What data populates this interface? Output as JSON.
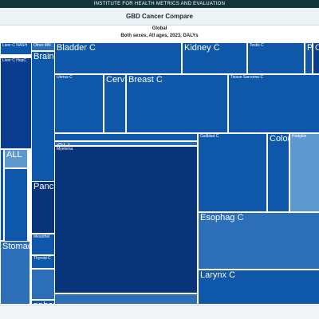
{
  "header": {
    "org": "INSTITUTE FOR HEALTH METRICS AND EVALUATION",
    "app_title": "GBD Cancer Compare",
    "location": "Global",
    "subtitle": "Both sexes, All ages, 2023, DALYs"
  },
  "colors": {
    "dark": "#0b3d8f",
    "medium": "#0f57a8",
    "light": "#2c6fb8",
    "pale": "#5d98cf",
    "deep": "#0a3479"
  },
  "treemap": [
    {
      "name": "Liver C NASH",
      "size": "s",
      "shade": "medium"
    },
    {
      "name": "Liver C HepC",
      "size": "s",
      "shade": "dark"
    },
    {
      "name": "",
      "size": "s",
      "shade": "light"
    },
    {
      "name": "Other MN",
      "size": "s",
      "shade": "light"
    },
    {
      "name": "Brain C",
      "size": "l",
      "shade": "medium"
    },
    {
      "name": "Bladder C",
      "size": "l",
      "shade": "medium"
    },
    {
      "name": "Kidney C",
      "size": "l",
      "shade": "medium"
    },
    {
      "name": "Testis C",
      "size": "s",
      "shade": "medium"
    },
    {
      "name": "P",
      "size": "l",
      "shade": "medium"
    },
    {
      "name": "Ovary C",
      "size": "l",
      "shade": "dark"
    },
    {
      "name": "Uterus C",
      "size": "s",
      "shade": "medium"
    },
    {
      "name": "Cervix C",
      "size": "l",
      "shade": "medium"
    },
    {
      "name": "Breast C",
      "size": "l",
      "shade": "medium"
    },
    {
      "name": "Tissue Sarcoma C",
      "size": "s",
      "shade": "medium"
    },
    {
      "name": "",
      "size": "s",
      "shade": "medium"
    },
    {
      "name": "CLL",
      "size": "l",
      "shade": "light"
    },
    {
      "name": "ALL",
      "size": "l",
      "shade": "pale"
    },
    {
      "name": "",
      "size": "s",
      "shade": "medium"
    },
    {
      "name": "",
      "size": "s",
      "shade": "light"
    },
    {
      "name": "Lung C",
      "size": "l",
      "shade": "medium"
    },
    {
      "name": "Myeloma",
      "size": "s",
      "shade": "deep"
    },
    {
      "name": "Pancreas C",
      "size": "l",
      "shade": "deep"
    },
    {
      "name": "Gallblad C",
      "size": "s",
      "shade": "medium"
    },
    {
      "name": "Colored",
      "size": "l",
      "shade": "medium"
    },
    {
      "name": "Hodgkin",
      "size": "s",
      "shade": "pale"
    },
    {
      "name": "Mesothel",
      "size": "s",
      "shade": "medium"
    },
    {
      "name": "Thyroid C",
      "size": "s",
      "shade": "medium"
    },
    {
      "name": "",
      "size": "s",
      "shade": "light"
    },
    {
      "name": "nphoma",
      "size": "l",
      "shade": "medium"
    },
    {
      "name": "Stomach C",
      "size": "l",
      "shade": "light"
    },
    {
      "name": "Esophag C",
      "size": "l",
      "shade": "light"
    },
    {
      "name": "Larynx C",
      "size": "l",
      "shade": "medium"
    },
    {
      "name": "",
      "size": "s",
      "shade": "light"
    }
  ]
}
